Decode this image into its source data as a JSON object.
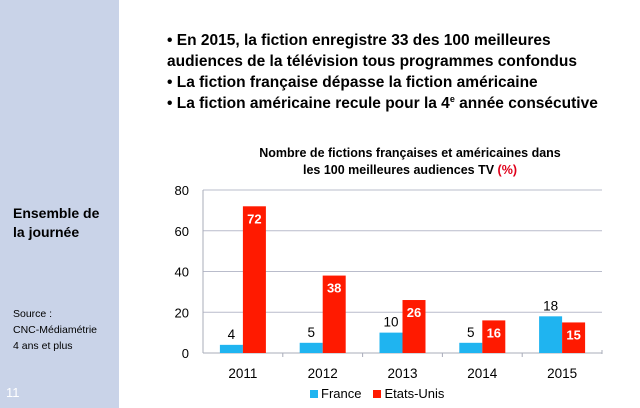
{
  "sidebar": {
    "heading_line1": "Ensemble de",
    "heading_line2": "la journée",
    "source_lines": [
      "Source :",
      "CNC-Médiamétrie",
      "4 ans et plus"
    ],
    "slide_number": "11"
  },
  "bullets": [
    {
      "lines": [
        "• En 2015, la fiction enregistre 33 des 100 meilleures",
        "audiences de la télévision tous programmes confondus"
      ]
    },
    {
      "lines": [
        "• La fiction française dépasse la fiction américaine"
      ]
    },
    {
      "pre": "• La fiction américaine recule pour la 4",
      "sup": "e",
      "post": " année consécutive"
    }
  ],
  "colors": {
    "france": "#1fb4f0",
    "etats_unis": "#ff1a00",
    "sidebar_bg": "#c9d3e8",
    "gridline": "#b9bccb"
  },
  "chart_data": {
    "type": "bar",
    "title_line1": "Nombre de fictions françaises et américaines dans",
    "title_line2": "les 100 meilleures audiences TV",
    "title_unit": "(%)",
    "categories": [
      "2011",
      "2012",
      "2013",
      "2014",
      "2015"
    ],
    "series": [
      {
        "name": "France",
        "values": [
          4,
          5,
          10,
          5,
          18
        ]
      },
      {
        "name": "Etats-Unis",
        "values": [
          72,
          38,
          26,
          16,
          15
        ]
      }
    ],
    "ylim": [
      0,
      80
    ],
    "yticks": [
      "0",
      "20",
      "40",
      "60",
      "80"
    ],
    "xlabel": "",
    "ylabel": "",
    "grid": true,
    "legend_position": "bottom"
  }
}
